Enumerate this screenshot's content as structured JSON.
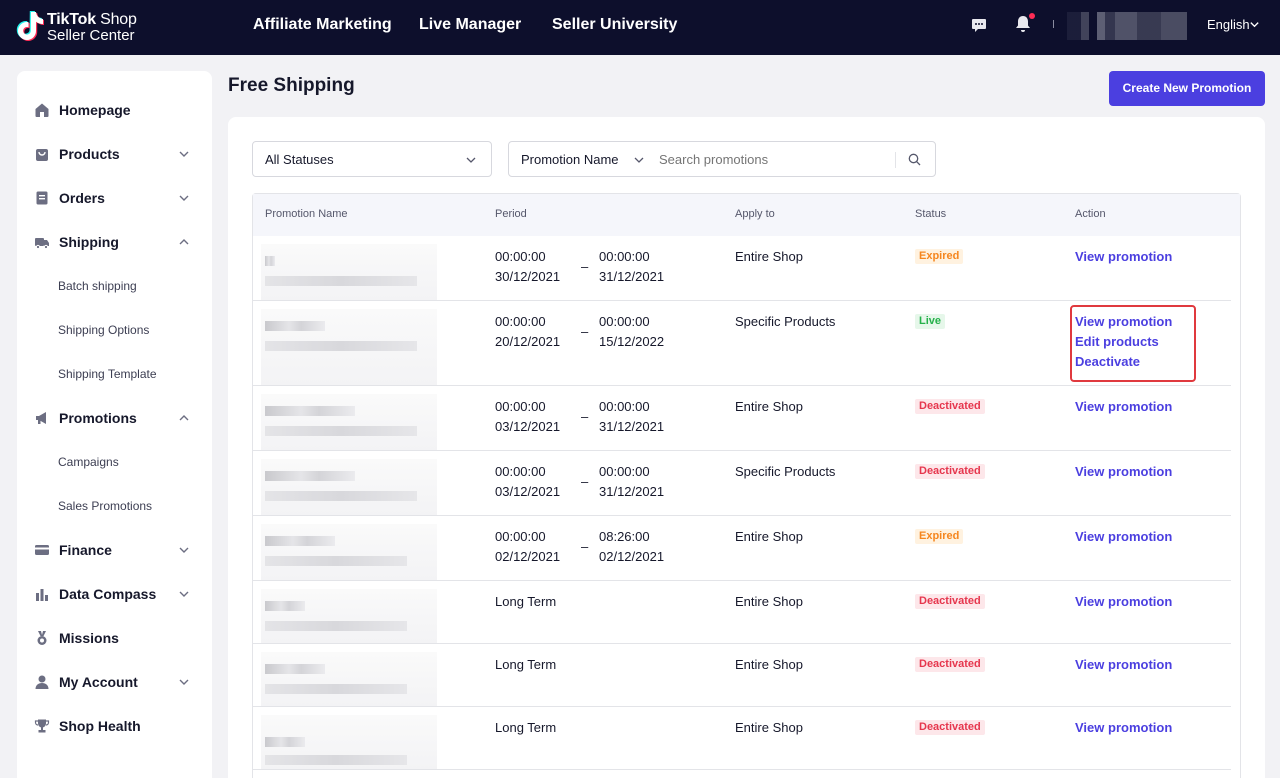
{
  "header": {
    "logo_line1_a": "TikTok",
    "logo_line1_b": " Shop",
    "logo_line2": "Seller Center",
    "nav": [
      "Affiliate Marketing",
      "Live Manager",
      "Seller University"
    ],
    "language": "English",
    "icons": [
      "chat-icon",
      "bell-icon",
      "chevron-down-icon"
    ]
  },
  "sidebar": {
    "items": [
      {
        "label": "Homepage",
        "icon": "home-icon",
        "expandable": false
      },
      {
        "label": "Products",
        "icon": "bag-icon",
        "expandable": true,
        "expanded": false
      },
      {
        "label": "Orders",
        "icon": "orders-icon",
        "expandable": true,
        "expanded": false
      },
      {
        "label": "Shipping",
        "icon": "truck-icon",
        "expandable": true,
        "expanded": true,
        "children": [
          "Batch shipping",
          "Shipping Options",
          "Shipping Template"
        ]
      },
      {
        "label": "Promotions",
        "icon": "megaphone-icon",
        "expandable": true,
        "expanded": true,
        "children": [
          "Campaigns",
          "Sales Promotions"
        ]
      },
      {
        "label": "Finance",
        "icon": "card-icon",
        "expandable": true,
        "expanded": false
      },
      {
        "label": "Data Compass",
        "icon": "bar-chart-icon",
        "expandable": true,
        "expanded": false
      },
      {
        "label": "Missions",
        "icon": "medal-icon",
        "expandable": false
      },
      {
        "label": "My Account",
        "icon": "user-icon",
        "expandable": true,
        "expanded": false
      },
      {
        "label": "Shop Health",
        "icon": "trophy-icon",
        "expandable": false
      }
    ]
  },
  "main": {
    "title": "Free Shipping",
    "create_button": "Create New Promotion",
    "status_filter": "All Statuses",
    "search_field": "Promotion Name",
    "search_placeholder": "Search promotions",
    "columns": [
      "Promotion Name",
      "Period",
      "Apply to",
      "Status",
      "Action"
    ],
    "rows": [
      {
        "start_time": "00:00:00",
        "start_date": "30/12/2021",
        "end_time": "00:00:00",
        "end_date": "31/12/2021",
        "apply_to": "Entire Shop",
        "status": "Expired",
        "actions": [
          "View promotion"
        ]
      },
      {
        "start_time": "00:00:00",
        "start_date": "20/12/2021",
        "end_time": "00:00:00",
        "end_date": "15/12/2022",
        "apply_to": "Specific Products",
        "status": "Live",
        "actions": [
          "View promotion",
          "Edit products",
          "Deactivate"
        ]
      },
      {
        "start_time": "00:00:00",
        "start_date": "03/12/2021",
        "end_time": "00:00:00",
        "end_date": "31/12/2021",
        "apply_to": "Entire Shop",
        "status": "Deactivated",
        "actions": [
          "View promotion"
        ]
      },
      {
        "start_time": "00:00:00",
        "start_date": "03/12/2021",
        "end_time": "00:00:00",
        "end_date": "31/12/2021",
        "apply_to": "Specific Products",
        "status": "Deactivated",
        "actions": [
          "View promotion"
        ]
      },
      {
        "start_time": "00:00:00",
        "start_date": "02/12/2021",
        "end_time": "08:26:00",
        "end_date": "02/12/2021",
        "apply_to": "Entire Shop",
        "status": "Expired",
        "actions": [
          "View promotion"
        ]
      },
      {
        "period": "Long Term",
        "apply_to": "Entire Shop",
        "status": "Deactivated",
        "actions": [
          "View promotion"
        ]
      },
      {
        "period": "Long Term",
        "apply_to": "Entire Shop",
        "status": "Deactivated",
        "actions": [
          "View promotion"
        ]
      },
      {
        "period": "Long Term",
        "apply_to": "Entire Shop",
        "status": "Deactivated",
        "actions": [
          "View promotion"
        ]
      }
    ]
  },
  "colors": {
    "header_bg": "#0d0f2c",
    "accent": "#4b3fe0",
    "expired": "#f5861f",
    "live": "#25b14a",
    "deactivated": "#e6374e",
    "highlight_box": "#e0393e"
  }
}
